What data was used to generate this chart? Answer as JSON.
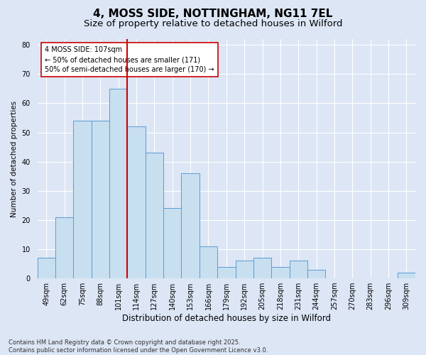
{
  "title": "4, MOSS SIDE, NOTTINGHAM, NG11 7EL",
  "subtitle": "Size of property relative to detached houses in Wilford",
  "xlabel": "Distribution of detached houses by size in Wilford",
  "ylabel": "Number of detached properties",
  "categories": [
    "49sqm",
    "62sqm",
    "75sqm",
    "88sqm",
    "101sqm",
    "114sqm",
    "127sqm",
    "140sqm",
    "153sqm",
    "166sqm",
    "179sqm",
    "192sqm",
    "205sqm",
    "218sqm",
    "231sqm",
    "244sqm",
    "257sqm",
    "270sqm",
    "283sqm",
    "296sqm",
    "309sqm"
  ],
  "values": [
    7,
    21,
    54,
    54,
    65,
    52,
    43,
    24,
    36,
    11,
    4,
    6,
    7,
    4,
    6,
    3,
    0,
    0,
    0,
    0,
    2
  ],
  "bar_color": "#c8dff0",
  "bar_edge_color": "#5b9bd5",
  "vline_x": 4.5,
  "vline_color": "#cc0000",
  "annotation_text": "4 MOSS SIDE: 107sqm\n← 50% of detached houses are smaller (171)\n50% of semi-detached houses are larger (170) →",
  "annotation_box_color": "#ffffff",
  "annotation_box_edge": "#cc0000",
  "ylim": [
    0,
    82
  ],
  "yticks": [
    0,
    10,
    20,
    30,
    40,
    50,
    60,
    70,
    80
  ],
  "figure_bg": "#dce6f5",
  "plot_bg": "#dce6f5",
  "grid_color": "#ffffff",
  "footer": "Contains HM Land Registry data © Crown copyright and database right 2025.\nContains public sector information licensed under the Open Government Licence v3.0.",
  "title_fontsize": 11,
  "subtitle_fontsize": 9.5,
  "xlabel_fontsize": 8.5,
  "ylabel_fontsize": 7.5,
  "tick_fontsize": 7,
  "annot_fontsize": 7,
  "footer_fontsize": 6
}
